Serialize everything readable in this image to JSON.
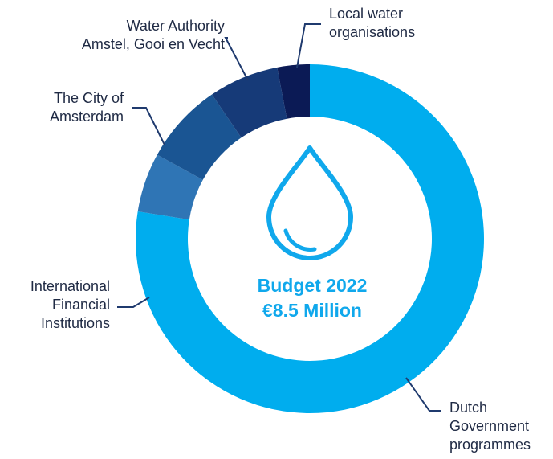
{
  "chart_data": {
    "type": "donut",
    "title": "",
    "center_label": [
      "Budget 2022",
      "€8.5 Million"
    ],
    "slices": [
      {
        "label": [
          "Dutch",
          "Government",
          "programmes"
        ],
        "value": 77.5,
        "color": "#00adee"
      },
      {
        "label": [
          "International",
          "Financial",
          "Institutions"
        ],
        "value": 5.5,
        "color": "#2f75b5"
      },
      {
        "label": [
          "The City of",
          "Amsterdam"
        ],
        "value": 7.5,
        "color": "#1a5593"
      },
      {
        "label": [
          "Water Authority",
          "Amstel, Gooi en Vecht"
        ],
        "value": 6.5,
        "color": "#163a78"
      },
      {
        "label": [
          "Local water",
          "organisations"
        ],
        "value": 3.0,
        "color": "#0b1a55"
      }
    ],
    "legend": "none",
    "icon": "water-drop-icon"
  }
}
